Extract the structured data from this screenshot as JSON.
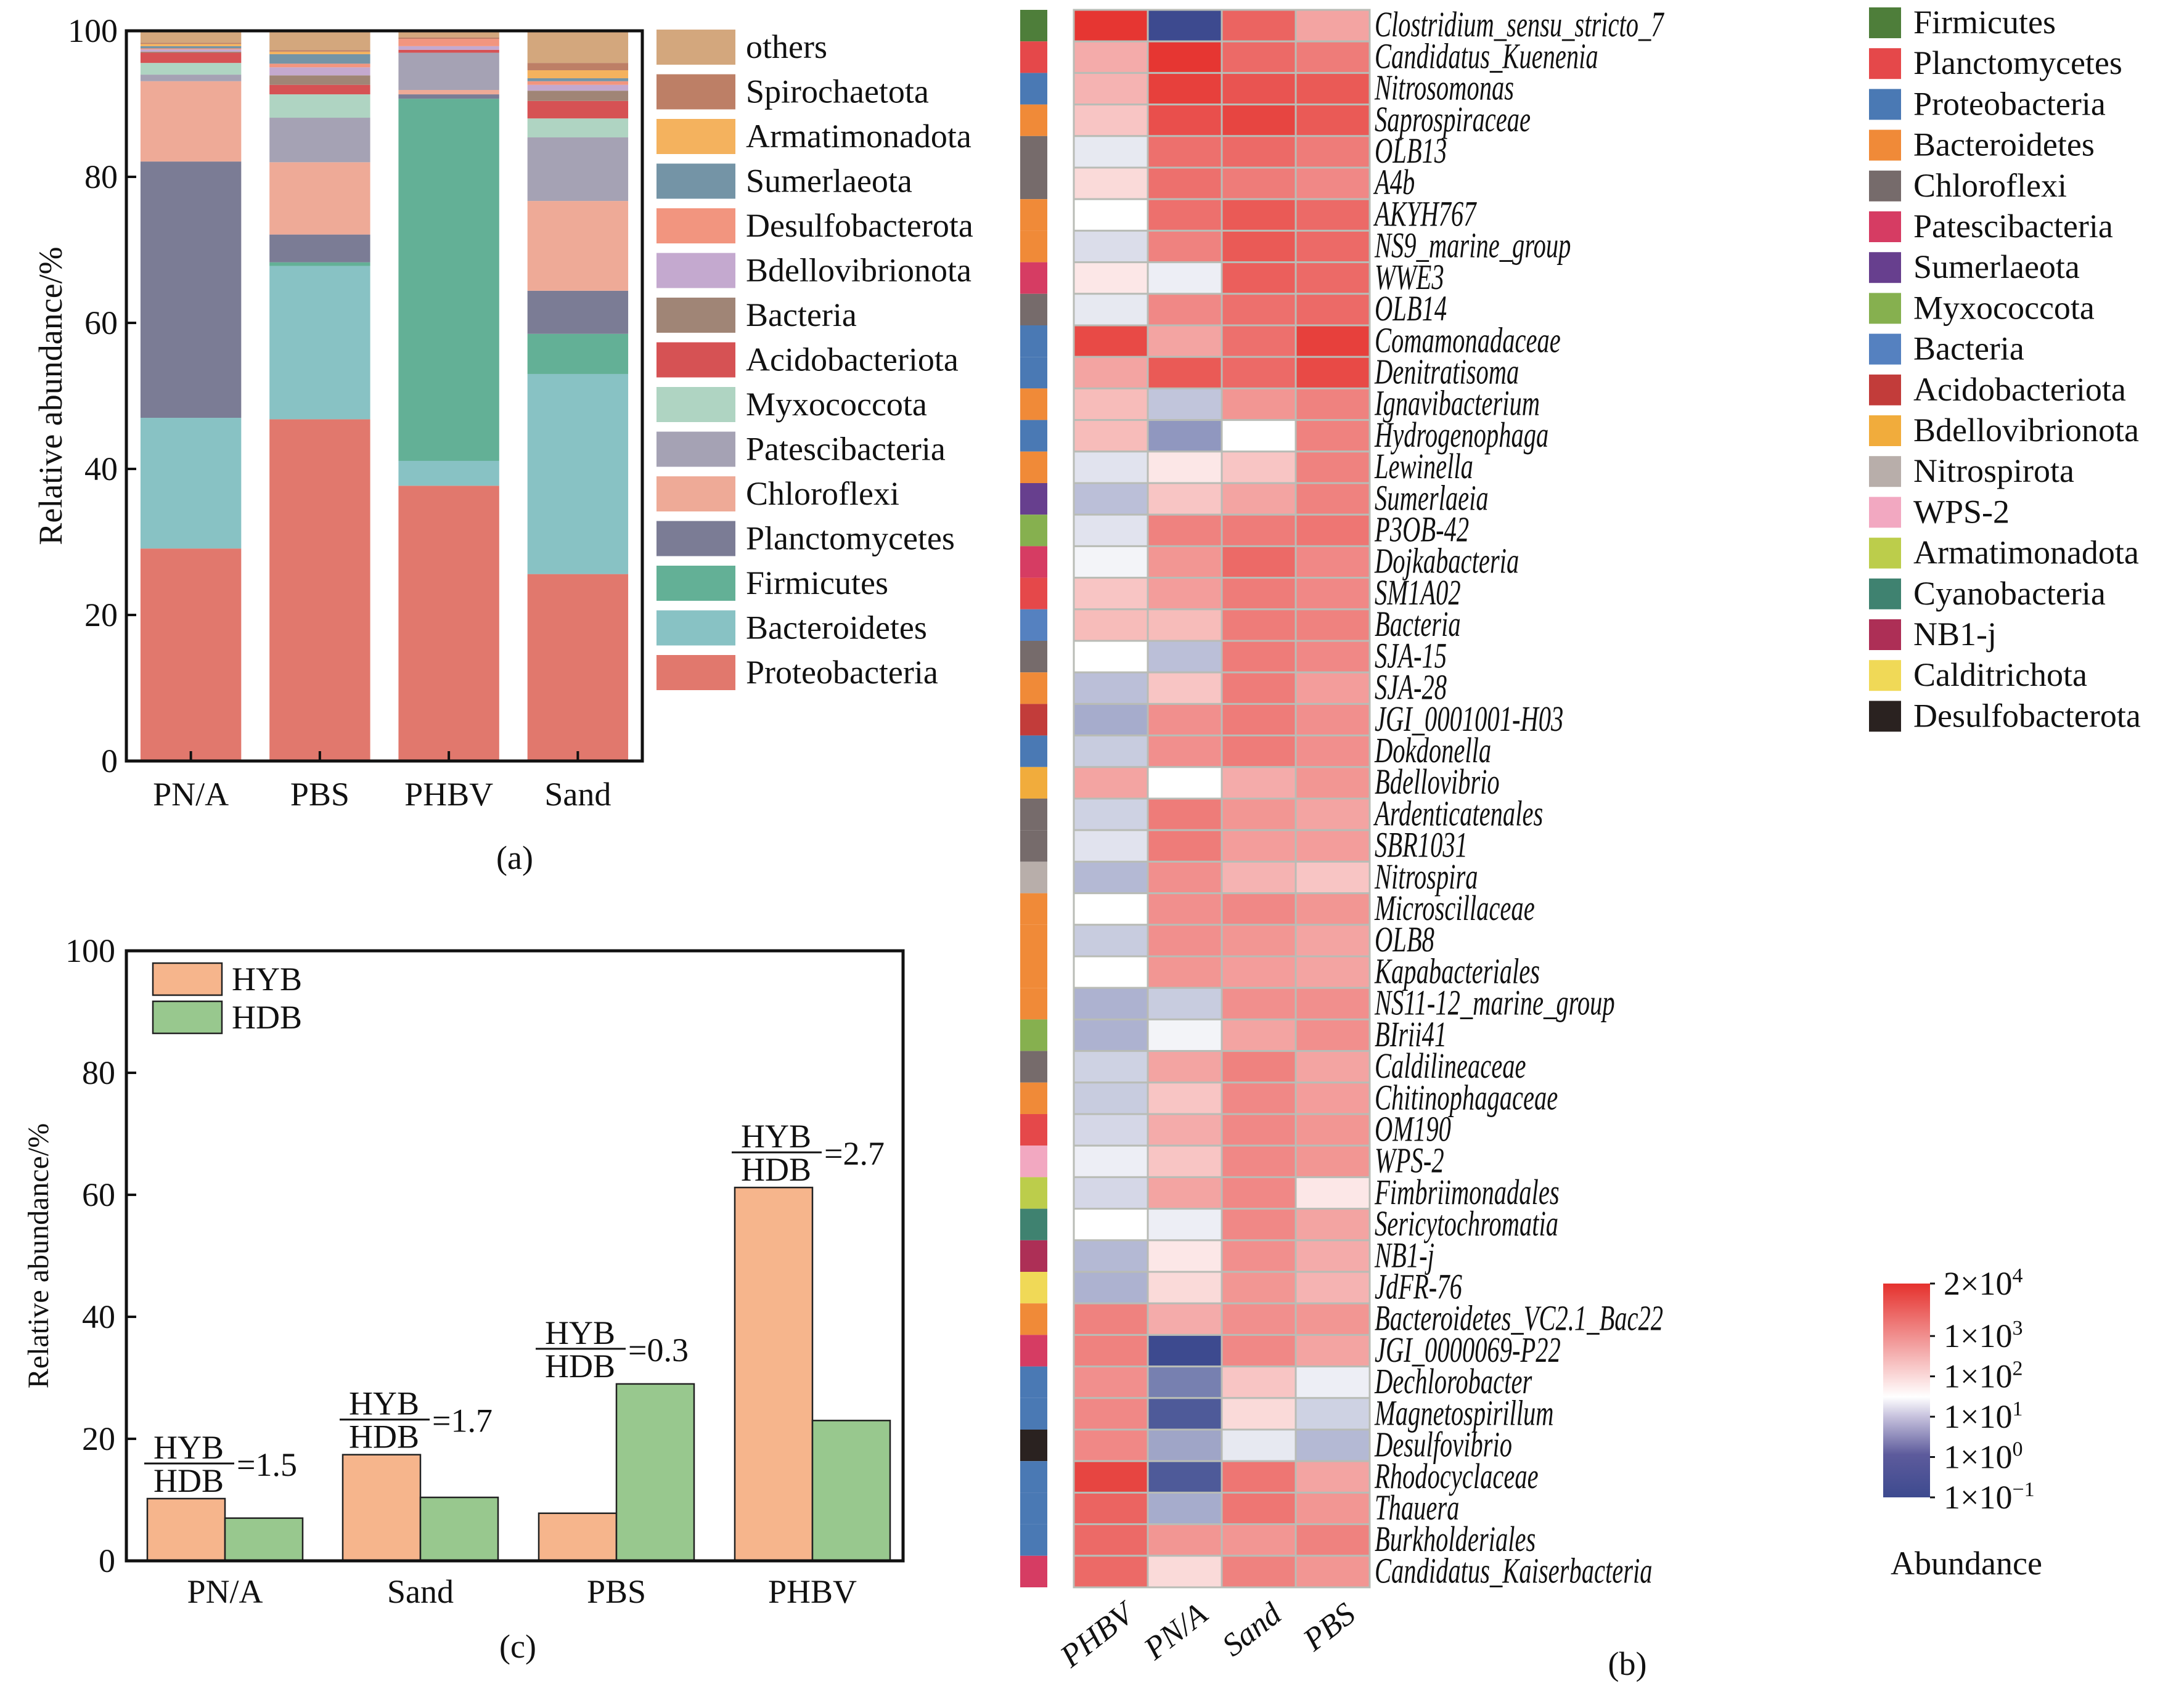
{
  "figure": {
    "panel_labels": {
      "a": "(a)",
      "b": "(b)",
      "c": "(c)"
    }
  },
  "chart_data": [
    {
      "id": "a",
      "type": "bar",
      "stacked": true,
      "title": "",
      "xlabel": "",
      "ylabel": "Relative abundance/%",
      "ylim": [
        0,
        100
      ],
      "yticks": [
        0,
        20,
        40,
        60,
        80,
        100
      ],
      "categories": [
        "PN/A",
        "PBS",
        "PHBV",
        "Sand"
      ],
      "legend_position": "right",
      "series": [
        {
          "name": "Proteobacteria",
          "color": "#e1786d",
          "values": [
            29.1,
            46.8,
            37.7,
            25.6
          ]
        },
        {
          "name": "Bacteroidetes",
          "color": "#88c2c4",
          "values": [
            17.9,
            21.0,
            3.4,
            27.4
          ]
        },
        {
          "name": "Firmicutes",
          "color": "#63b096",
          "values": [
            0.0,
            0.5,
            49.6,
            5.5
          ]
        },
        {
          "name": "Planctomycetes",
          "color": "#7b7c95",
          "values": [
            35.1,
            3.8,
            0.6,
            5.9
          ]
        },
        {
          "name": "Chloroflexi",
          "color": "#eeaa97",
          "values": [
            11.0,
            9.9,
            0.6,
            12.3
          ]
        },
        {
          "name": "Patescibacteria",
          "color": "#a5a2b4",
          "values": [
            0.9,
            6.1,
            5.1,
            8.7
          ]
        },
        {
          "name": "Myxococcota",
          "color": "#afd4c2",
          "values": [
            1.6,
            3.2,
            0.0,
            2.6
          ]
        },
        {
          "name": "Acidobacteriota",
          "color": "#d65254",
          "values": [
            1.4,
            1.3,
            0.4,
            2.4
          ]
        },
        {
          "name": "Bacteria",
          "color": "#a08576",
          "values": [
            0.15,
            1.3,
            0.0,
            1.4
          ]
        },
        {
          "name": "Bdellovibrionota",
          "color": "#c4a9cf",
          "values": [
            0.3,
            1.1,
            0.5,
            0.8
          ]
        },
        {
          "name": "Desulfobacterota",
          "color": "#f2957f",
          "values": [
            0.15,
            0.5,
            1.0,
            0.5
          ]
        },
        {
          "name": "Sumerlaeota",
          "color": "#7494a6",
          "values": [
            0.3,
            1.3,
            0.0,
            0.4
          ]
        },
        {
          "name": "Armatimonadota",
          "color": "#f4b25e",
          "values": [
            0.3,
            0.35,
            0.0,
            1.1
          ]
        },
        {
          "name": "Spirochaetota",
          "color": "#bd7f66",
          "values": [
            0.15,
            0.2,
            0.2,
            1.0
          ]
        },
        {
          "name": "others",
          "color": "#d3a77d",
          "values": [
            1.7,
            2.6,
            0.9,
            4.3
          ]
        }
      ]
    },
    {
      "id": "b",
      "type": "heatmap",
      "title": "",
      "columns": [
        "PHBV",
        "PN/A",
        "Sand",
        "PBS"
      ],
      "colorbar": {
        "title": "Abundance",
        "scale": "log10",
        "range_log10": [
          -1,
          4.301
        ],
        "ticks": [
          {
            "log10": 4.301,
            "base": "2×10",
            "exp": "4"
          },
          {
            "log10": 3,
            "base": "1×10",
            "exp": "3"
          },
          {
            "log10": 2,
            "base": "1×10",
            "exp": "2"
          },
          {
            "log10": 1,
            "base": "1×10",
            "exp": "1"
          },
          {
            "log10": 0,
            "base": "1×10",
            "exp": "0"
          },
          {
            "log10": -1,
            "base": "1×10",
            "exp": "−1"
          }
        ],
        "colors": {
          "low": "#3d4a8f",
          "mid": "#ffffff",
          "high": "#e5312d"
        },
        "mid_log10": 1.5
      },
      "phylum_legend": [
        {
          "name": "Firmicutes",
          "color": "#4e7e3a"
        },
        {
          "name": "Planctomycetes",
          "color": "#e5484a"
        },
        {
          "name": "Proteobacteria",
          "color": "#4a79b4"
        },
        {
          "name": "Bacteroidetes",
          "color": "#f08a38"
        },
        {
          "name": "Chloroflexi",
          "color": "#766b6b"
        },
        {
          "name": "Patescibacteria",
          "color": "#d63c63"
        },
        {
          "name": "Sumerlaeota",
          "color": "#673f8e"
        },
        {
          "name": "Myxococcota",
          "color": "#86b04f"
        },
        {
          "name": "Bacteria",
          "color": "#5581c0"
        },
        {
          "name": "Acidobacteriota",
          "color": "#c23c3a"
        },
        {
          "name": "Bdellovibrionota",
          "color": "#f1ac3c"
        },
        {
          "name": "Nitrospirota",
          "color": "#b8aeaa"
        },
        {
          "name": "WPS-2",
          "color": "#f2a8c1"
        },
        {
          "name": "Armatimonadota",
          "color": "#bccd4b"
        },
        {
          "name": "Cyanobacteria",
          "color": "#3f8270"
        },
        {
          "name": "NB1-j",
          "color": "#ad2f56"
        },
        {
          "name": "Calditrichota",
          "color": "#f0d957"
        },
        {
          "name": "Desulfobacterota",
          "color": "#2a2220"
        }
      ],
      "rows": [
        {
          "label": "Clostridium_sensu_stricto_7",
          "phylum": "Firmicutes",
          "values_log10": [
            4.2,
            -1.0,
            3.3,
            2.3
          ]
        },
        {
          "label": "Candidatus_Kuenenia",
          "phylum": "Planctomycetes",
          "values_log10": [
            2.2,
            4.2,
            3.2,
            2.9
          ]
        },
        {
          "label": "Nitrosomonas",
          "phylum": "Proteobacteria",
          "values_log10": [
            2.1,
            4.0,
            3.6,
            3.5
          ]
        },
        {
          "label": "Saprospiraceae",
          "phylum": "Bacteroidetes",
          "values_log10": [
            1.9,
            3.7,
            3.9,
            3.5
          ]
        },
        {
          "label": "OLB13",
          "phylum": "Chloroflexi",
          "values_log10": [
            1.1,
            3.1,
            3.2,
            2.9
          ]
        },
        {
          "label": "A4b",
          "phylum": "Chloroflexi",
          "values_log10": [
            1.7,
            3.1,
            2.9,
            2.7
          ]
        },
        {
          "label": "AKYH767",
          "phylum": "Bacteroidetes",
          "values_log10": [
            1.5,
            3.1,
            3.5,
            3.2
          ]
        },
        {
          "label": "NS9_marine_group",
          "phylum": "Bacteroidetes",
          "values_log10": [
            0.9,
            2.8,
            3.5,
            3.2
          ]
        },
        {
          "label": "WWE3",
          "phylum": "Patescibacteria",
          "values_log10": [
            1.6,
            1.2,
            3.4,
            3.2
          ]
        },
        {
          "label": "OLB14",
          "phylum": "Chloroflexi",
          "values_log10": [
            1.1,
            2.7,
            3.1,
            3.2
          ]
        },
        {
          "label": "Comamonadaceae",
          "phylum": "Proteobacteria",
          "values_log10": [
            3.8,
            2.3,
            3.1,
            4.0
          ]
        },
        {
          "label": "Denitratisoma",
          "phylum": "Proteobacteria",
          "values_log10": [
            2.3,
            3.5,
            3.2,
            3.8
          ]
        },
        {
          "label": "Ignavibacterium",
          "phylum": "Bacteroidetes",
          "values_log10": [
            2.0,
            0.5,
            2.5,
            2.8
          ]
        },
        {
          "label": "Hydrogenophaga",
          "phylum": "Proteobacteria",
          "values_log10": [
            2.0,
            -0.2,
            1.5,
            2.8
          ]
        },
        {
          "label": "Lewinella",
          "phylum": "Bacteroidetes",
          "values_log10": [
            1.0,
            1.6,
            1.9,
            2.8
          ]
        },
        {
          "label": "Sumerlaeia",
          "phylum": "Sumerlaeota",
          "values_log10": [
            0.4,
            1.9,
            2.3,
            2.8
          ]
        },
        {
          "label": "P3OB-42",
          "phylum": "Myxococcota",
          "values_log10": [
            1.0,
            2.8,
            2.9,
            3.0
          ]
        },
        {
          "label": "Dojkabacteria",
          "phylum": "Patescibacteria",
          "values_log10": [
            1.3,
            2.5,
            3.2,
            2.7
          ]
        },
        {
          "label": "SM1A02",
          "phylum": "Planctomycetes",
          "values_log10": [
            1.9,
            2.4,
            2.9,
            2.7
          ]
        },
        {
          "label": "Bacteria",
          "phylum": "Bacteria",
          "values_log10": [
            2.0,
            2.0,
            2.9,
            2.8
          ]
        },
        {
          "label": "SJA-15",
          "phylum": "Chloroflexi",
          "values_log10": [
            1.5,
            0.4,
            2.9,
            2.7
          ]
        },
        {
          "label": "SJA-28",
          "phylum": "Bacteroidetes",
          "values_log10": [
            0.4,
            1.9,
            2.9,
            2.4
          ]
        },
        {
          "label": "JGI_0001001-H03",
          "phylum": "Acidobacteriota",
          "values_log10": [
            0.1,
            2.6,
            2.9,
            2.6
          ]
        },
        {
          "label": "Dokdonella",
          "phylum": "Proteobacteria",
          "values_log10": [
            0.6,
            2.6,
            2.9,
            2.6
          ]
        },
        {
          "label": "Bdellovibrio",
          "phylum": "Bdellovibrionota",
          "values_log10": [
            2.3,
            1.5,
            2.2,
            2.5
          ]
        },
        {
          "label": "Ardenticatenales",
          "phylum": "Chloroflexi",
          "values_log10": [
            0.7,
            2.9,
            2.5,
            2.3
          ]
        },
        {
          "label": "SBR1031",
          "phylum": "Chloroflexi",
          "values_log10": [
            1.0,
            2.9,
            2.4,
            2.4
          ]
        },
        {
          "label": "Nitrospira",
          "phylum": "Nitrospirota",
          "values_log10": [
            0.3,
            2.6,
            2.1,
            1.9
          ]
        },
        {
          "label": "Microscillaceae",
          "phylum": "Bacteroidetes",
          "values_log10": [
            1.5,
            2.6,
            2.7,
            2.5
          ]
        },
        {
          "label": "OLB8",
          "phylum": "Bacteroidetes",
          "values_log10": [
            0.6,
            2.6,
            2.5,
            2.3
          ]
        },
        {
          "label": "Kapabacteriales",
          "phylum": "Bacteroidetes",
          "values_log10": [
            1.5,
            2.5,
            2.4,
            2.3
          ]
        },
        {
          "label": "NS11-12_marine_group",
          "phylum": "Bacteroidetes",
          "values_log10": [
            0.2,
            0.6,
            2.6,
            2.6
          ]
        },
        {
          "label": "BIrii41",
          "phylum": "Myxococcota",
          "values_log10": [
            0.2,
            1.3,
            2.3,
            2.6
          ]
        },
        {
          "label": "Caldilineaceae",
          "phylum": "Chloroflexi",
          "values_log10": [
            0.7,
            2.3,
            2.8,
            2.3
          ]
        },
        {
          "label": "Chitinophagaceae",
          "phylum": "Bacteroidetes",
          "values_log10": [
            0.6,
            1.9,
            2.7,
            2.4
          ]
        },
        {
          "label": "OM190",
          "phylum": "Planctomycetes",
          "values_log10": [
            0.8,
            2.2,
            2.7,
            2.5
          ]
        },
        {
          "label": "WPS-2",
          "phylum": "WPS-2",
          "values_log10": [
            1.2,
            1.9,
            2.7,
            2.5
          ]
        },
        {
          "label": "Fimbriimonadales",
          "phylum": "Armatimonadota",
          "values_log10": [
            0.8,
            2.3,
            2.7,
            1.6
          ]
        },
        {
          "label": "Sericytochromatia",
          "phylum": "Cyanobacteria",
          "values_log10": [
            1.5,
            1.2,
            2.7,
            2.3
          ]
        },
        {
          "label": "NB1-j",
          "phylum": "NB1-j",
          "values_log10": [
            0.3,
            1.6,
            2.6,
            2.2
          ]
        },
        {
          "label": "JdFR-76",
          "phylum": "Calditrichota",
          "values_log10": [
            0.2,
            1.7,
            2.5,
            2.1
          ]
        },
        {
          "label": "Bacteroidetes_VC2.1_Bac22",
          "phylum": "Bacteroidetes",
          "values_log10": [
            2.8,
            2.2,
            2.6,
            2.5
          ]
        },
        {
          "label": "JGI_0000069-P22",
          "phylum": "Patescibacteria",
          "values_log10": [
            2.8,
            -1.0,
            2.7,
            2.3
          ]
        },
        {
          "label": "Dechlorobacter",
          "phylum": "Proteobacteria",
          "values_log10": [
            2.6,
            -0.5,
            1.9,
            1.2
          ]
        },
        {
          "label": "Magnetospirillum",
          "phylum": "Proteobacteria",
          "values_log10": [
            2.7,
            -0.9,
            1.7,
            0.7
          ]
        },
        {
          "label": "Desulfovibrio",
          "phylum": "Desulfobacterota",
          "values_log10": [
            2.7,
            0.0,
            1.1,
            0.3
          ]
        },
        {
          "label": "Rhodocyclaceae",
          "phylum": "Proteobacteria",
          "values_log10": [
            3.9,
            -0.9,
            3.0,
            2.3
          ]
        },
        {
          "label": "Thauera",
          "phylum": "Proteobacteria",
          "values_log10": [
            3.3,
            0.1,
            3.0,
            2.5
          ]
        },
        {
          "label": "Burkholderiales",
          "phylum": "Proteobacteria",
          "values_log10": [
            3.2,
            2.5,
            2.5,
            2.8
          ]
        },
        {
          "label": "Candidatus_Kaiserbacteria",
          "phylum": "Patescibacteria",
          "values_log10": [
            3.2,
            1.7,
            2.8,
            2.5
          ]
        }
      ]
    },
    {
      "id": "c",
      "type": "bar",
      "grouped": true,
      "title": "",
      "xlabel": "",
      "ylabel": "Relative abundance/%",
      "ylim": [
        0,
        100
      ],
      "yticks": [
        0,
        20,
        40,
        60,
        80,
        100
      ],
      "categories": [
        "PN/A",
        "Sand",
        "PBS",
        "PHBV"
      ],
      "legend_position": "top-left",
      "series": [
        {
          "name": "HYB",
          "color": "#f6b58c",
          "values": [
            10.2,
            17.4,
            7.8,
            61.2
          ]
        },
        {
          "name": "HDB",
          "color": "#98c88e",
          "values": [
            7.0,
            10.4,
            29.0,
            23.0
          ]
        }
      ],
      "annotations": [
        {
          "category": "PN/A",
          "numerator": "HYB",
          "denominator": "HDB",
          "value": "=1.5"
        },
        {
          "category": "Sand",
          "numerator": "HYB",
          "denominator": "HDB",
          "value": "=1.7"
        },
        {
          "category": "PBS",
          "numerator": "HYB",
          "denominator": "HDB",
          "value": "=0.3"
        },
        {
          "category": "PHBV",
          "numerator": "HYB",
          "denominator": "HDB",
          "value": "=2.7"
        }
      ]
    }
  ]
}
